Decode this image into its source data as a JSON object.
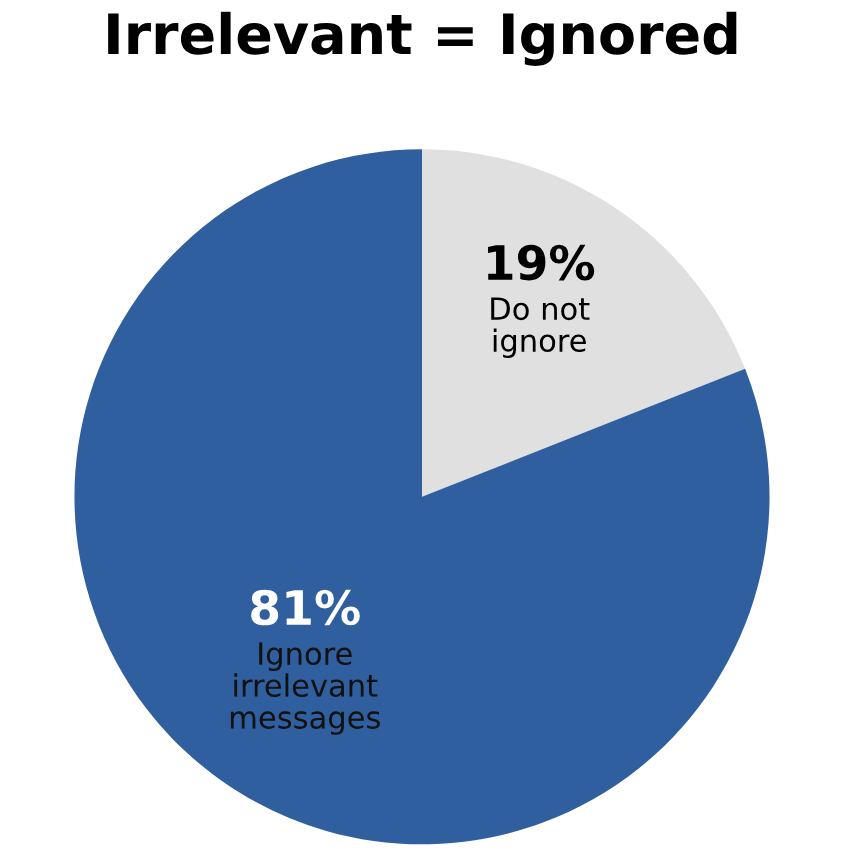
{
  "chart_data": {
    "type": "pie",
    "title": "Irrelevant = Ignored",
    "categories": [
      "Do not\nignore",
      "Ignore\nirrelevant\nmessages"
    ],
    "values": [
      19,
      81
    ],
    "value_labels": [
      "19%",
      "81%"
    ],
    "colors": [
      "#e0e0e0",
      "#2f5f9e"
    ]
  }
}
